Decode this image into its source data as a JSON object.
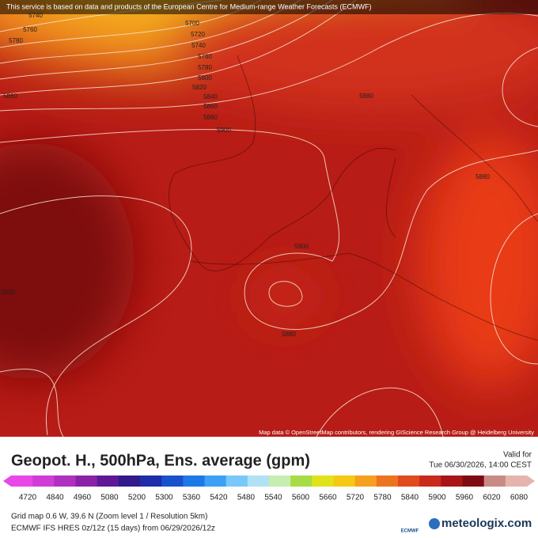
{
  "header": {
    "notice": "This service is based on data and products of the European Centre for Medium-range Weather Forecasts (ECMWF)"
  },
  "map": {
    "contour_labels": [
      "5740",
      "5760",
      "5780",
      "5700",
      "5720",
      "5740",
      "5760",
      "5780",
      "5800",
      "5820",
      "5840",
      "5860",
      "5880",
      "5900",
      "5860",
      "5880",
      "5880",
      "5900",
      "5880",
      "5900"
    ],
    "attribution": "Map data © OpenStreetMap contributors, rendering GIScience Research Group @ Heidelberg University"
  },
  "legend": {
    "title": "Geopot. H., 500hPa, Ens. average (gpm)",
    "valid_label": "Valid for",
    "valid_time": "Tue 06/30/2026, 14:00 CEST",
    "ticks": [
      "4720",
      "4840",
      "4960",
      "5080",
      "5200",
      "5300",
      "5360",
      "5420",
      "5480",
      "5540",
      "5600",
      "5660",
      "5720",
      "5780",
      "5840",
      "5900",
      "5960",
      "6020",
      "6080"
    ],
    "colors": [
      "#e848e8",
      "#d03cd8",
      "#b030c0",
      "#8a22a8",
      "#5e1896",
      "#301a8c",
      "#1c2ea8",
      "#1a50cc",
      "#1e78e6",
      "#3ca0f4",
      "#78c8fa",
      "#b0e2f4",
      "#c6eeb0",
      "#a8dc46",
      "#e2e21a",
      "#f5c814",
      "#f5a01e",
      "#ec741e",
      "#e04a1e",
      "#c82a1c",
      "#a81418",
      "#800a12",
      "#c88a84",
      "#e6b4ae"
    ]
  },
  "footer": {
    "grid": "Grid map 0.6 W, 39.6 N (Zoom level 1 / Resolution 5km)",
    "model": "ECMWF IFS HRES 0z/12z (15 days) from  06/29/2026/12z",
    "ecmwf_logo": "ECMWF",
    "brand": "meteologix.com"
  }
}
